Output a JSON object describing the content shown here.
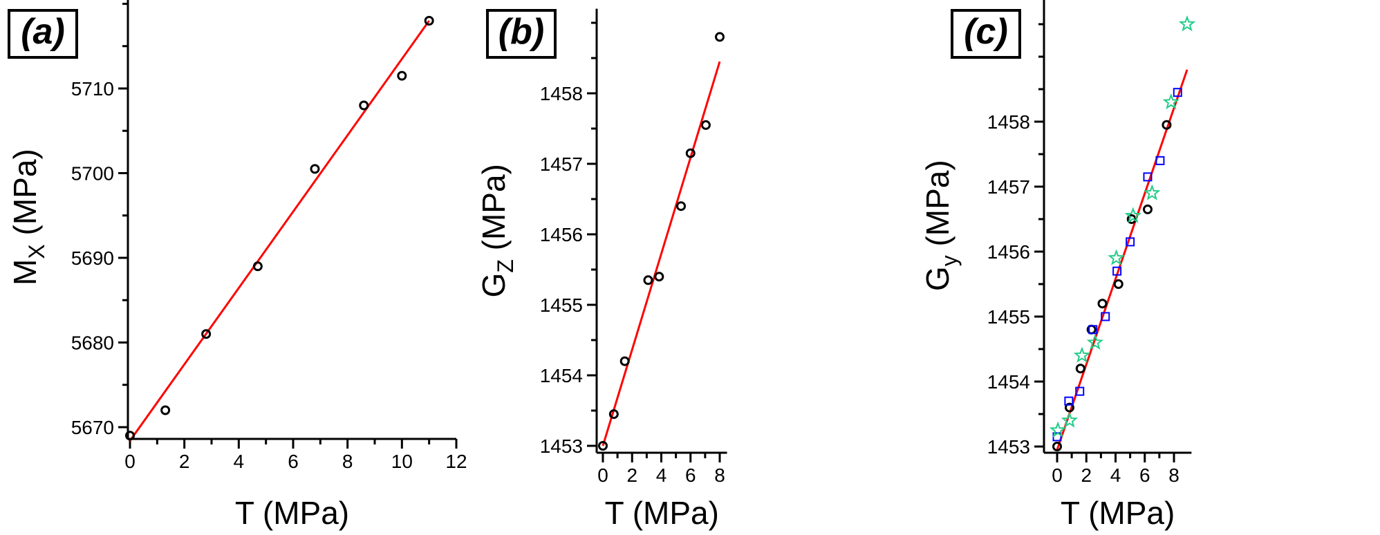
{
  "chart_data": [
    {
      "type": "scatter",
      "panel_label": "(a)",
      "xlabel": "T (MPa)",
      "ylabel": "M",
      "ylabel_sub": "X",
      "ylabel_unit": " (MPa)",
      "xlim": [
        -0.3,
        12
      ],
      "ylim": [
        5668,
        5721
      ],
      "xticks": [
        0,
        2,
        4,
        6,
        8,
        10,
        12
      ],
      "yticks": [
        5670,
        5680,
        5690,
        5700,
        5710
      ],
      "series": [
        {
          "marker": "circle",
          "color": "#000000",
          "x": [
            0,
            1.3,
            2.8,
            4.7,
            6.8,
            8.6,
            10.0,
            11.0
          ],
          "y": [
            5669,
            5672,
            5681,
            5689,
            5700.5,
            5708,
            5711.5,
            5718
          ]
        }
      ],
      "fit": {
        "color": "#ff0000",
        "x": [
          0,
          11.0
        ],
        "y": [
          5668.4,
          5718.0
        ]
      }
    },
    {
      "type": "scatter",
      "panel_label": "(b)",
      "xlabel": "T (MPa)",
      "ylabel": "G",
      "ylabel_sub": "Z",
      "ylabel_unit": " (MPa)",
      "xlim": [
        -0.2,
        8.5
      ],
      "ylim": [
        1452.9,
        1459.2
      ],
      "xticks": [
        0,
        2,
        4,
        6,
        8
      ],
      "yticks": [
        1453,
        1454,
        1455,
        1456,
        1457,
        1458
      ],
      "series": [
        {
          "marker": "circle",
          "color": "#000000",
          "x": [
            0,
            0.75,
            1.5,
            3.1,
            3.85,
            5.35,
            6.0,
            7.05,
            8.0
          ],
          "y": [
            1453.0,
            1453.45,
            1454.2,
            1455.35,
            1455.4,
            1456.4,
            1457.15,
            1457.55,
            1458.8
          ]
        }
      ],
      "fit": {
        "color": "#ff0000",
        "x": [
          0,
          8.0
        ],
        "y": [
          1453.0,
          1458.45
        ]
      }
    },
    {
      "type": "scatter",
      "panel_label": "(c)",
      "xlabel": "T (MPa)",
      "ylabel": "G",
      "ylabel_sub": "y",
      "ylabel_unit": " (MPa)",
      "xlim": [
        -0.2,
        9.2
      ],
      "ylim": [
        1452.9,
        1459.9
      ],
      "xticks": [
        0,
        2,
        4,
        6,
        8
      ],
      "yticks": [
        1453,
        1454,
        1455,
        1456,
        1457,
        1458
      ],
      "series": [
        {
          "marker": "circle",
          "color": "#000000",
          "x": [
            0,
            0.85,
            1.6,
            2.35,
            3.1,
            4.2,
            5.1,
            6.2,
            7.5
          ],
          "y": [
            1453.0,
            1453.6,
            1454.2,
            1454.8,
            1455.2,
            1455.5,
            1456.5,
            1456.65,
            1457.95
          ]
        },
        {
          "marker": "square",
          "color": "#0000ff",
          "x": [
            0,
            0.8,
            1.55,
            2.45,
            3.3,
            4.1,
            5.0,
            6.2,
            7.05,
            8.25
          ],
          "y": [
            1453.15,
            1453.7,
            1453.85,
            1454.8,
            1455.0,
            1455.7,
            1456.15,
            1457.15,
            1457.4,
            1458.45
          ]
        },
        {
          "marker": "star",
          "color": "#22cc88",
          "x": [
            0.05,
            0.85,
            1.7,
            2.6,
            4.05,
            5.2,
            6.5,
            7.8,
            8.9
          ],
          "y": [
            1453.25,
            1453.4,
            1454.4,
            1454.6,
            1455.9,
            1456.55,
            1456.9,
            1458.3,
            1459.5
          ]
        }
      ],
      "fit": {
        "color": "#ff0000",
        "x": [
          0,
          8.9
        ],
        "y": [
          1452.95,
          1458.8
        ]
      }
    }
  ]
}
